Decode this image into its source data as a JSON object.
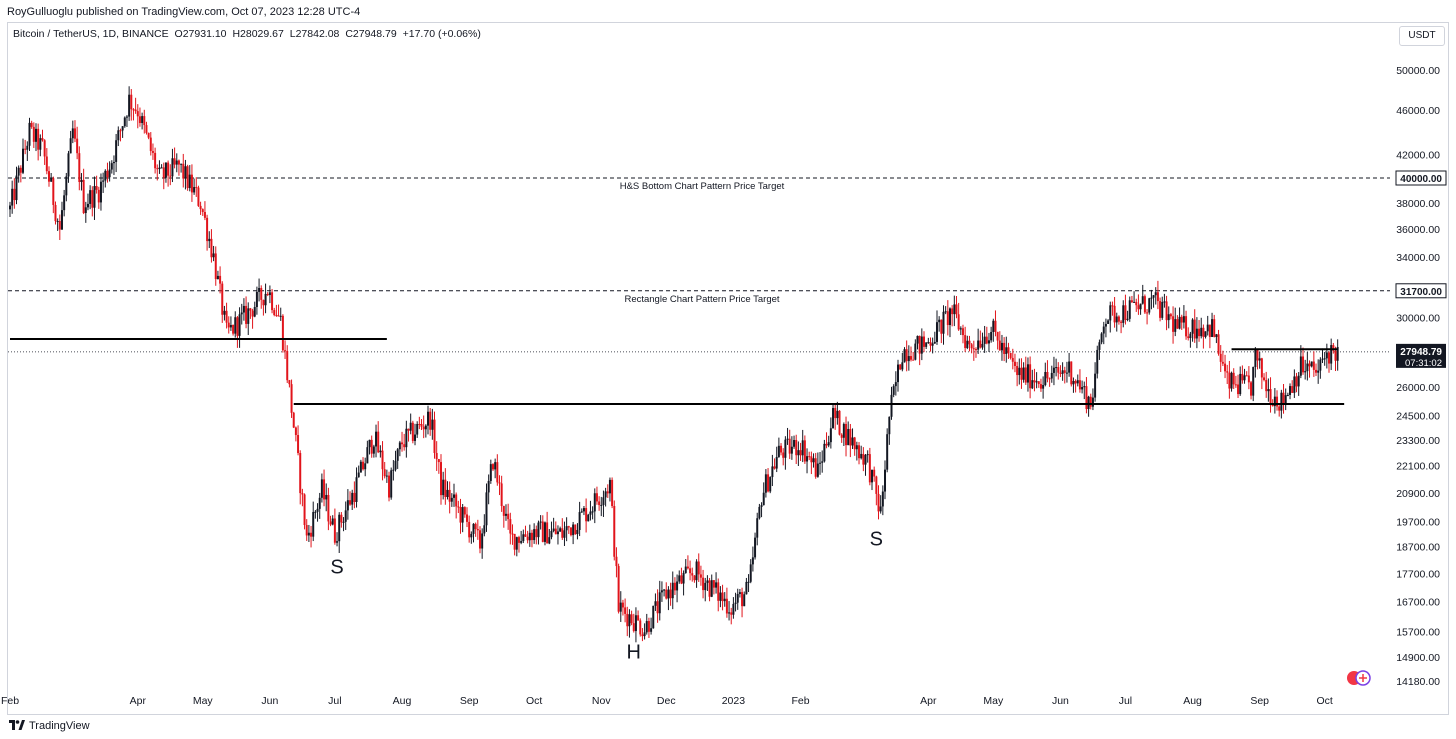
{
  "header": {
    "publisher": "RoyGulluoglu published on TradingView.com, Oct 07, 2023 12:28 UTC-4",
    "symbol": "Bitcoin / TetherUS, 1D, BINANCE",
    "open": "O27931.10",
    "high": "H28029.67",
    "low": "L27842.08",
    "close": "C27948.79",
    "change": "+17.70 (+0.06%)",
    "currency_button": "USDT"
  },
  "footer": {
    "brand": "TradingView"
  },
  "colors": {
    "up_candle": "#131722",
    "down_candle": "#e1141b",
    "grid_line": "#131722"
  },
  "chart_data": {
    "type": "candlestick",
    "price_axis": {
      "scale": "log",
      "range": [
        14000,
        52000
      ],
      "ticks": [
        50000,
        46000,
        42000,
        38000,
        36000,
        34000,
        30000,
        26000,
        24500,
        23300,
        22100,
        20900,
        19700,
        18700,
        17700,
        16700,
        15700,
        14900,
        14180
      ],
      "tick_labels": [
        "50000.00",
        "46000.00",
        "42000.00",
        "38000.00",
        "36000.00",
        "34000.00",
        "30000.00",
        "26000.00",
        "24500.00",
        "23300.00",
        "22100.00",
        "20900.00",
        "19700.00",
        "18700.00",
        "17700.00",
        "16700.00",
        "15700.00",
        "14900.00",
        "14180.00"
      ]
    },
    "time_axis": {
      "range": [
        "2022-02-01",
        "2023-10-15"
      ],
      "ticks": [
        {
          "date": "2022-02-01",
          "label": "Feb"
        },
        {
          "date": "2022-04-01",
          "label": "Apr"
        },
        {
          "date": "2022-05-01",
          "label": "May"
        },
        {
          "date": "2022-06-01",
          "label": "Jun"
        },
        {
          "date": "2022-07-01",
          "label": "Jul"
        },
        {
          "date": "2022-08-01",
          "label": "Aug"
        },
        {
          "date": "2022-09-01",
          "label": "Sep"
        },
        {
          "date": "2022-10-01",
          "label": "Oct"
        },
        {
          "date": "2022-11-01",
          "label": "Nov"
        },
        {
          "date": "2022-12-01",
          "label": "Dec"
        },
        {
          "date": "2023-01-01",
          "label": "2023"
        },
        {
          "date": "2023-02-01",
          "label": "Feb"
        },
        {
          "date": "2023-04-01",
          "label": "Apr"
        },
        {
          "date": "2023-05-01",
          "label": "May"
        },
        {
          "date": "2023-06-01",
          "label": "Jun"
        },
        {
          "date": "2023-07-01",
          "label": "Jul"
        },
        {
          "date": "2023-08-01",
          "label": "Aug"
        },
        {
          "date": "2023-09-01",
          "label": "Sep"
        },
        {
          "date": "2023-10-01",
          "label": "Oct"
        }
      ]
    },
    "price_path": [
      [
        "2022-02-01",
        37500
      ],
      [
        "2022-02-10",
        44000
      ],
      [
        "2022-02-16",
        42500
      ],
      [
        "2022-02-24",
        36000
      ],
      [
        "2022-03-02",
        44000
      ],
      [
        "2022-03-07",
        38000
      ],
      [
        "2022-03-14",
        39000
      ],
      [
        "2022-03-20",
        41500
      ],
      [
        "2022-03-28",
        47000
      ],
      [
        "2022-04-01",
        46000
      ],
      [
        "2022-04-11",
        40000
      ],
      [
        "2022-04-20",
        41000
      ],
      [
        "2022-04-30",
        38000
      ],
      [
        "2022-05-06",
        34000
      ],
      [
        "2022-05-12",
        29000
      ],
      [
        "2022-05-20",
        30000
      ],
      [
        "2022-05-31",
        31800
      ],
      [
        "2022-06-06",
        29800
      ],
      [
        "2022-06-12",
        24000
      ],
      [
        "2022-06-18",
        19000
      ],
      [
        "2022-06-25",
        21000
      ],
      [
        "2022-07-01",
        19200
      ],
      [
        "2022-07-10",
        21000
      ],
      [
        "2022-07-19",
        23500
      ],
      [
        "2022-07-26",
        21200
      ],
      [
        "2022-08-01",
        23200
      ],
      [
        "2022-08-14",
        24400
      ],
      [
        "2022-08-19",
        21200
      ],
      [
        "2022-08-26",
        20300
      ],
      [
        "2022-09-06",
        18800
      ],
      [
        "2022-09-12",
        22400
      ],
      [
        "2022-09-20",
        19000
      ],
      [
        "2022-10-01",
        19300
      ],
      [
        "2022-10-14",
        19200
      ],
      [
        "2022-10-25",
        20100
      ],
      [
        "2022-11-05",
        21300
      ],
      [
        "2022-11-09",
        16500
      ],
      [
        "2022-11-21",
        15800
      ],
      [
        "2022-12-01",
        17000
      ],
      [
        "2022-12-14",
        17800
      ],
      [
        "2022-12-31",
        16500
      ],
      [
        "2023-01-08",
        17100
      ],
      [
        "2023-01-14",
        20800
      ],
      [
        "2023-01-22",
        22700
      ],
      [
        "2023-02-01",
        23100
      ],
      [
        "2023-02-09",
        21800
      ],
      [
        "2023-02-16",
        24500
      ],
      [
        "2023-02-25",
        23200
      ],
      [
        "2023-03-04",
        22300
      ],
      [
        "2023-03-10",
        20000
      ],
      [
        "2023-03-14",
        24500
      ],
      [
        "2023-03-20",
        28000
      ],
      [
        "2023-03-31",
        28400
      ],
      [
        "2023-04-12",
        30400
      ],
      [
        "2023-04-20",
        28200
      ],
      [
        "2023-04-30",
        29300
      ],
      [
        "2023-05-12",
        26700
      ],
      [
        "2023-05-25",
        26400
      ],
      [
        "2023-06-05",
        27000
      ],
      [
        "2023-06-15",
        25100
      ],
      [
        "2023-06-21",
        30000
      ],
      [
        "2023-07-05",
        30600
      ],
      [
        "2023-07-14",
        31000
      ],
      [
        "2023-07-25",
        29400
      ],
      [
        "2023-08-10",
        29400
      ],
      [
        "2023-08-17",
        26200
      ],
      [
        "2023-08-28",
        26000
      ],
      [
        "2023-08-30",
        27600
      ],
      [
        "2023-09-05",
        25800
      ],
      [
        "2023-09-11",
        25200
      ],
      [
        "2023-09-20",
        27100
      ],
      [
        "2023-09-28",
        26800
      ],
      [
        "2023-10-02",
        27900
      ],
      [
        "2023-10-07",
        27948.79
      ]
    ],
    "horizontal_levels": [
      {
        "price": 40000,
        "style": "dashed",
        "label": "H&S Bottom Chart Pattern Price Target",
        "axis_badge": "40000.00"
      },
      {
        "price": 31700,
        "style": "dashed",
        "label": "Rectangle Chart Pattern Price Target",
        "axis_badge": "31700.00"
      }
    ],
    "trend_lines": [
      {
        "from": [
          "2022-02-01",
          28700
        ],
        "to": [
          "2022-07-25",
          28700
        ]
      },
      {
        "from": [
          "2022-06-12",
          25100
        ],
        "to": [
          "2023-10-10",
          25100
        ]
      },
      {
        "from": [
          "2023-08-19",
          28100
        ],
        "to": [
          "2023-10-07",
          28100
        ]
      }
    ],
    "pattern_labels": [
      {
        "text": "S",
        "date": "2022-07-02",
        "price": 17700
      },
      {
        "text": "H",
        "date": "2022-11-16",
        "price": 14850
      },
      {
        "text": "S",
        "date": "2023-03-08",
        "price": 18750
      }
    ],
    "last_price": {
      "price": "27948.79",
      "countdown": "07:31:02"
    }
  }
}
